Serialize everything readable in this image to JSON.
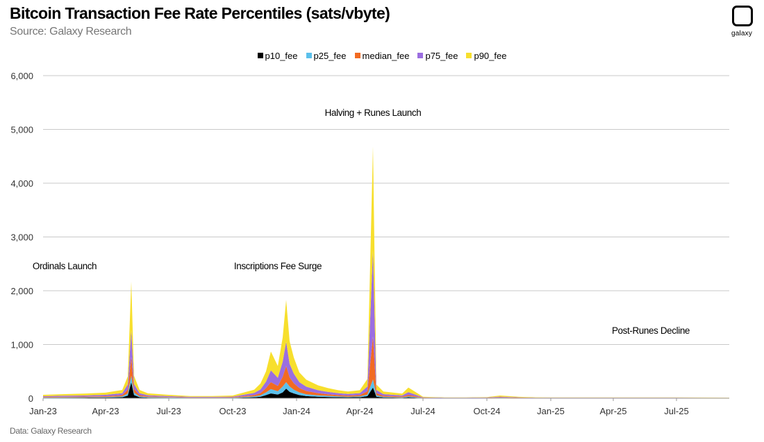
{
  "header": {
    "title": "Bitcoin Transaction Fee Rate Percentiles (sats/vbyte)",
    "subtitle": "Source: Galaxy Research",
    "logo_text": "galaxy"
  },
  "footer": {
    "text": "Data: Galaxy Research"
  },
  "chart_data": {
    "type": "area",
    "title": "Bitcoin Transaction Fee Rate Percentiles (sats/vbyte)",
    "subtitle": "Source: Galaxy Research",
    "xlabel": "",
    "ylabel": "",
    "ylim": [
      0,
      6000
    ],
    "yticks": [
      0,
      1000,
      2000,
      3000,
      4000,
      5000,
      6000
    ],
    "ytick_labels": [
      "0",
      "1,000",
      "2,000",
      "3,000",
      "4,000",
      "5,000",
      "6,000"
    ],
    "xticks": [
      "2023-01-01",
      "2023-04-01",
      "2023-07-01",
      "2023-10-01",
      "2024-01-01",
      "2024-04-01",
      "2024-07-01",
      "2024-10-01",
      "2025-01-01",
      "2025-04-01",
      "2025-07-01"
    ],
    "xtick_labels": [
      "Jan-23",
      "Apr-23",
      "Jul-23",
      "Oct-23",
      "Jan-24",
      "Apr-24",
      "Jul-24",
      "Oct-24",
      "Jan-25",
      "Apr-25",
      "Jul-25"
    ],
    "x_range": [
      "2023-01-01",
      "2025-09-15"
    ],
    "grid": "horizontal",
    "legend_position": "top-center",
    "stacked": true,
    "x": [
      "2023-01-01",
      "2023-02-01",
      "2023-03-01",
      "2023-04-01",
      "2023-04-25",
      "2023-05-03",
      "2023-05-08",
      "2023-05-12",
      "2023-05-20",
      "2023-06-01",
      "2023-07-01",
      "2023-08-01",
      "2023-09-01",
      "2023-10-01",
      "2023-11-01",
      "2023-11-10",
      "2023-11-18",
      "2023-11-25",
      "2023-12-05",
      "2023-12-12",
      "2023-12-17",
      "2023-12-22",
      "2023-12-28",
      "2024-01-05",
      "2024-01-15",
      "2024-02-01",
      "2024-02-15",
      "2024-03-01",
      "2024-03-15",
      "2024-04-01",
      "2024-04-12",
      "2024-04-20",
      "2024-04-25",
      "2024-05-05",
      "2024-06-01",
      "2024-06-10",
      "2024-07-01",
      "2024-08-01",
      "2024-09-01",
      "2024-10-01",
      "2024-10-20",
      "2024-11-15",
      "2024-12-10",
      "2025-01-01",
      "2025-03-01",
      "2025-05-01",
      "2025-07-01",
      "2025-09-15"
    ],
    "series": [
      {
        "name": "p10_fee",
        "color": "#000000",
        "values": [
          8,
          10,
          12,
          14,
          20,
          50,
          300,
          60,
          20,
          12,
          8,
          5,
          5,
          6,
          20,
          30,
          60,
          90,
          70,
          110,
          180,
          120,
          90,
          60,
          40,
          30,
          25,
          20,
          18,
          20,
          40,
          200,
          30,
          15,
          10,
          20,
          4,
          2,
          2,
          3,
          6,
          4,
          3,
          2,
          2,
          2,
          2,
          2
        ]
      },
      {
        "name": "p25_fee",
        "color": "#5bc0eb",
        "values": [
          6,
          8,
          8,
          10,
          15,
          40,
          120,
          45,
          15,
          10,
          7,
          5,
          5,
          5,
          15,
          25,
          50,
          80,
          60,
          110,
          120,
          100,
          70,
          50,
          35,
          25,
          20,
          15,
          12,
          15,
          30,
          150,
          25,
          12,
          8,
          15,
          3,
          2,
          2,
          3,
          5,
          3,
          2,
          2,
          2,
          2,
          2,
          2
        ]
      },
      {
        "name": "median_fee",
        "color": "#f26b21",
        "values": [
          10,
          12,
          12,
          15,
          25,
          70,
          350,
          70,
          25,
          15,
          10,
          7,
          7,
          8,
          25,
          40,
          80,
          130,
          100,
          180,
          300,
          170,
          120,
          80,
          60,
          40,
          30,
          25,
          20,
          25,
          60,
          800,
          40,
          20,
          15,
          30,
          5,
          3,
          3,
          4,
          8,
          5,
          3,
          3,
          3,
          3,
          3,
          2
        ]
      },
      {
        "name": "p75_fee",
        "color": "#9b6ee0",
        "values": [
          15,
          18,
          20,
          25,
          35,
          100,
          500,
          90,
          35,
          20,
          15,
          10,
          10,
          12,
          40,
          70,
          120,
          220,
          150,
          280,
          450,
          250,
          180,
          110,
          80,
          55,
          45,
          35,
          30,
          35,
          90,
          1600,
          60,
          30,
          20,
          50,
          6,
          4,
          4,
          5,
          12,
          6,
          4,
          4,
          4,
          4,
          4,
          3
        ]
      },
      {
        "name": "p90_fee",
        "color": "#f7df2d",
        "values": [
          25,
          30,
          35,
          40,
          60,
          150,
          900,
          150,
          60,
          35,
          25,
          15,
          15,
          20,
          60,
          110,
          190,
          350,
          220,
          450,
          780,
          420,
          300,
          180,
          130,
          90,
          70,
          55,
          45,
          55,
          140,
          1930,
          100,
          50,
          35,
          85,
          10,
          6,
          6,
          8,
          20,
          10,
          6,
          6,
          6,
          6,
          6,
          4
        ]
      }
    ],
    "annotations": [
      {
        "text": "Ordinals Launch",
        "x": "2023-02-01",
        "y": 2400
      },
      {
        "text": "Inscriptions Fee Surge",
        "x": "2023-12-05",
        "y": 2400
      },
      {
        "text": "Halving + Runes Launch",
        "x": "2024-04-20",
        "y": 5250
      },
      {
        "text": "Post-Runes Decline",
        "x": "2025-05-25",
        "y": 1200
      }
    ]
  }
}
